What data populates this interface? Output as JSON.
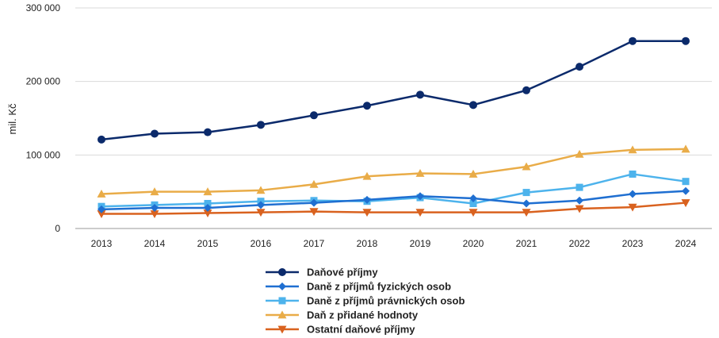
{
  "chart_data": {
    "type": "line",
    "ylabel": "mil. Kč",
    "ylim": [
      0,
      300000
    ],
    "yticks": [
      {
        "value": 0,
        "label": "0"
      },
      {
        "value": 100000,
        "label": "100 000"
      },
      {
        "value": 200000,
        "label": "200 000"
      },
      {
        "value": 300000,
        "label": "300 000"
      }
    ],
    "grid": true,
    "legend_position": "bottom",
    "x": [
      "2013",
      "2014",
      "2015",
      "2016",
      "2017",
      "2018",
      "2019",
      "2020",
      "2021",
      "2022",
      "2023",
      "2024"
    ],
    "series": [
      {
        "name": "Daňové příjmy",
        "color": "#0b2a6b",
        "marker": "circle",
        "values": [
          121000,
          129000,
          131000,
          141000,
          154000,
          167000,
          182000,
          168000,
          188000,
          220000,
          255000,
          255000
        ]
      },
      {
        "name": "Daně z příjmů fyzických osob",
        "color": "#1f6fd1",
        "marker": "diamond",
        "values": [
          26000,
          28000,
          28000,
          32000,
          35000,
          39000,
          44000,
          41000,
          34000,
          38000,
          47000,
          51000
        ]
      },
      {
        "name": "Daně z příjmů právnických osob",
        "color": "#4db3ec",
        "marker": "square",
        "values": [
          30000,
          32000,
          34000,
          37000,
          38000,
          37000,
          42000,
          34000,
          49000,
          56000,
          74000,
          64000
        ]
      },
      {
        "name": "Daň z přidané hodnoty",
        "color": "#e9ac48",
        "marker": "triangle-up",
        "values": [
          47000,
          50000,
          50000,
          52000,
          60000,
          71000,
          75000,
          74000,
          84000,
          101000,
          107000,
          108000
        ]
      },
      {
        "name": "Ostatní daňové příjmy",
        "color": "#d9621f",
        "marker": "triangle-down",
        "values": [
          20000,
          20000,
          21000,
          22000,
          23000,
          22000,
          22000,
          22000,
          22000,
          27000,
          29000,
          35000
        ]
      }
    ]
  }
}
